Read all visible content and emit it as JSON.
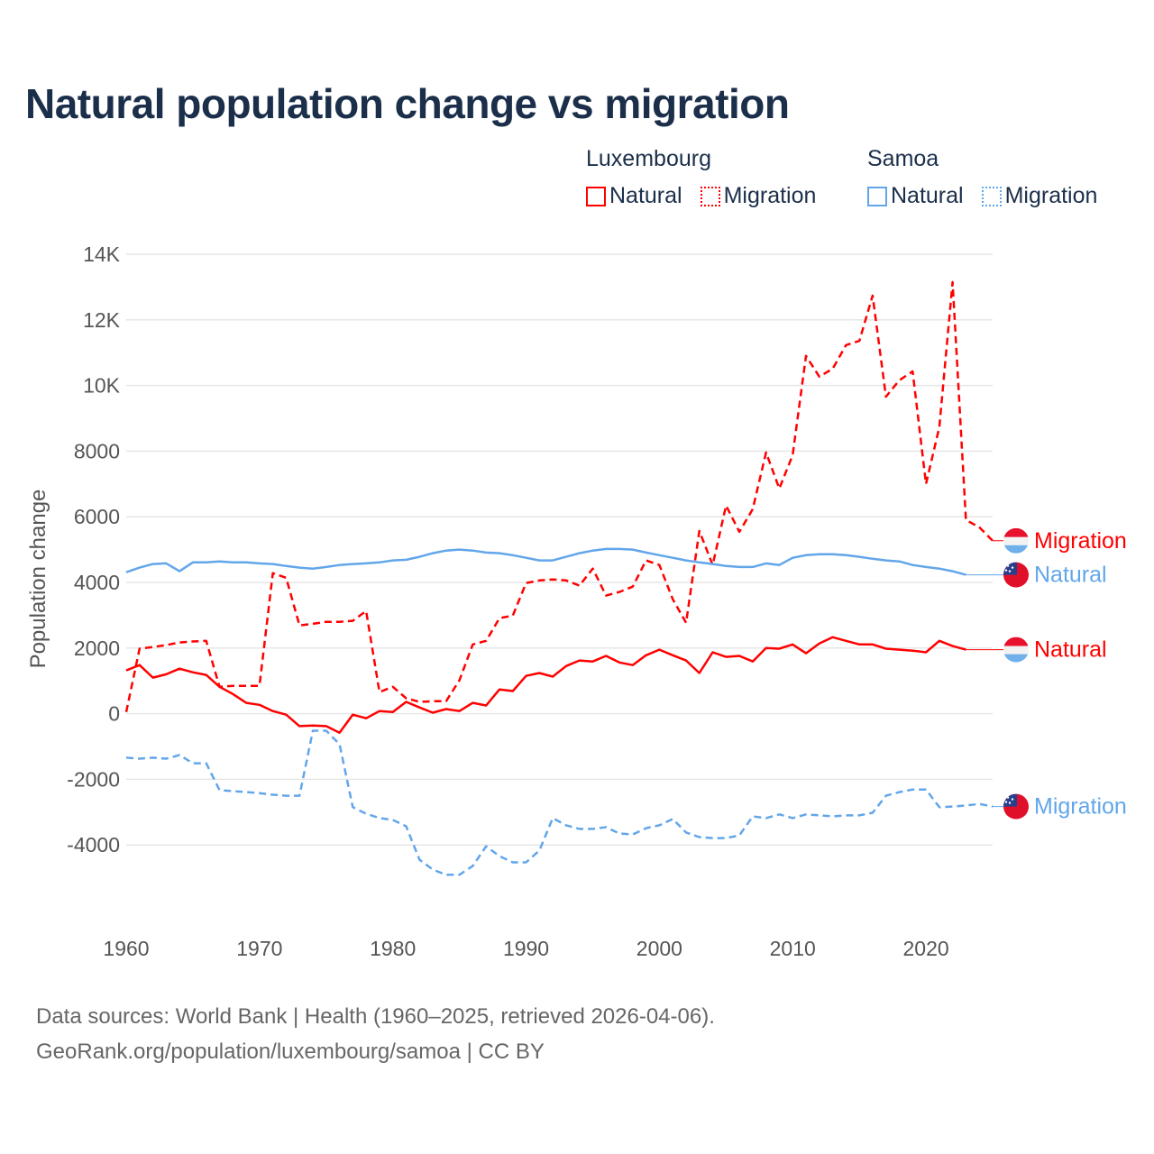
{
  "title": "Natural population change vs migration",
  "legend": {
    "groups": [
      {
        "name": "Luxembourg",
        "color": "#ff0000",
        "items": [
          "Natural",
          "Migration"
        ]
      },
      {
        "name": "Samoa",
        "color": "#62a6ea",
        "items": [
          "Natural",
          "Migration"
        ]
      }
    ]
  },
  "footer": {
    "line1": "Data sources: World Bank | Health (1960–2025, retrieved 2026-04-06).",
    "line2": "GeoRank.org/population/luxembourg/samoa | CC BY"
  },
  "chart_data": {
    "type": "line",
    "title": "Natural population change vs migration",
    "xlabel": "",
    "ylabel": "Population change",
    "xlim": [
      1960,
      2025
    ],
    "ylim": [
      -6000,
      14000
    ],
    "grid": true,
    "legend_placement": "top-right",
    "x_ticks": [
      "1960",
      "1970",
      "1980",
      "1990",
      "2000",
      "2010",
      "2020"
    ],
    "x_tick_values": [
      1960,
      1970,
      1980,
      1990,
      2000,
      2010,
      2020
    ],
    "y_ticks": [
      "14K",
      "12K",
      "10K",
      "8000",
      "6000",
      "4000",
      "2000",
      "0",
      "-2000",
      "-4000"
    ],
    "y_tick_values": [
      14000,
      12000,
      10000,
      8000,
      6000,
      4000,
      2000,
      0,
      -2000,
      -4000
    ],
    "series": [
      {
        "name": "Luxembourg Natural",
        "country": "Luxembourg",
        "kind": "Natural",
        "end_label": "Natural",
        "color": "#ff0000",
        "dash": false,
        "start": 1960,
        "values": [
          1320,
          1480,
          1100,
          1200,
          1370,
          1260,
          1180,
          820,
          600,
          330,
          270,
          80,
          -30,
          -380,
          -360,
          -380,
          -580,
          -30,
          -140,
          80,
          50,
          360,
          190,
          30,
          140,
          80,
          330,
          250,
          740,
          690,
          1150,
          1240,
          1130,
          1450,
          1620,
          1590,
          1760,
          1560,
          1480,
          1780,
          1950,
          1780,
          1620,
          1240,
          1870,
          1730,
          1760,
          1590,
          2000,
          1980,
          2110,
          1840,
          2140,
          2330,
          2220,
          2110,
          2110,
          1980,
          1950,
          1920,
          1870,
          2220,
          2060,
          1950
        ]
      },
      {
        "name": "Luxembourg Migration",
        "country": "Luxembourg",
        "kind": "Migration",
        "end_label": "Migration",
        "color": "#ff0000",
        "dash": true,
        "start": 1960,
        "values": [
          50,
          1980,
          2030,
          2090,
          2170,
          2200,
          2220,
          820,
          850,
          850,
          850,
          4280,
          4140,
          2690,
          2740,
          2800,
          2800,
          2830,
          3130,
          660,
          820,
          470,
          360,
          380,
          380,
          1020,
          2110,
          2220,
          2910,
          2990,
          3980,
          4060,
          4090,
          4060,
          3900,
          4420,
          3600,
          3710,
          3870,
          4670,
          4530,
          3490,
          2770,
          5570,
          4530,
          6340,
          5540,
          6230,
          7960,
          6860,
          7880,
          10900,
          10270,
          10510,
          11230,
          11360,
          12740,
          9660,
          10160,
          10430,
          7000,
          8730,
          13150,
          5900,
          5680,
          5270
        ]
      },
      {
        "name": "Samoa Natural",
        "country": "Samoa",
        "kind": "Natural",
        "end_label": "Natural",
        "color": "#62a6ea",
        "dash": false,
        "start": 1960,
        "values": [
          4310,
          4450,
          4560,
          4580,
          4340,
          4610,
          4610,
          4640,
          4610,
          4610,
          4580,
          4560,
          4500,
          4450,
          4420,
          4470,
          4530,
          4560,
          4580,
          4610,
          4670,
          4690,
          4780,
          4890,
          4970,
          5000,
          4970,
          4910,
          4890,
          4830,
          4750,
          4670,
          4670,
          4780,
          4890,
          4970,
          5020,
          5020,
          5000,
          4910,
          4830,
          4750,
          4670,
          4610,
          4560,
          4500,
          4470,
          4470,
          4580,
          4530,
          4750,
          4830,
          4860,
          4860,
          4830,
          4780,
          4720,
          4670,
          4640,
          4530,
          4470,
          4420,
          4340,
          4230
        ]
      },
      {
        "name": "Samoa Migration",
        "country": "Samoa",
        "kind": "Migration",
        "end_label": "Migration",
        "color": "#62a6ea",
        "dash": true,
        "start": 1960,
        "values": [
          -1340,
          -1370,
          -1340,
          -1370,
          -1260,
          -1510,
          -1510,
          -2330,
          -2360,
          -2390,
          -2420,
          -2470,
          -2500,
          -2500,
          -520,
          -520,
          -930,
          -2850,
          -3050,
          -3180,
          -3240,
          -3430,
          -4450,
          -4750,
          -4910,
          -4910,
          -4640,
          -4040,
          -4340,
          -4530,
          -4530,
          -4170,
          -3180,
          -3400,
          -3510,
          -3510,
          -3460,
          -3650,
          -3680,
          -3490,
          -3400,
          -3210,
          -3620,
          -3760,
          -3790,
          -3790,
          -3710,
          -3130,
          -3180,
          -3070,
          -3180,
          -3070,
          -3100,
          -3130,
          -3100,
          -3100,
          -3020,
          -2500,
          -2390,
          -2310,
          -2310,
          -2850,
          -2830,
          -2800,
          -2750,
          -2830
        ]
      }
    ]
  }
}
